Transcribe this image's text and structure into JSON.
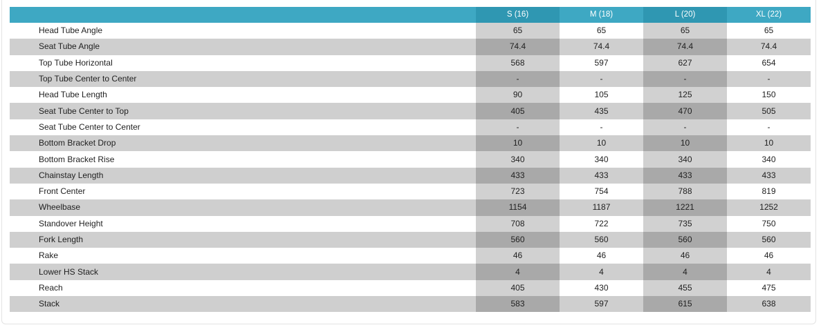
{
  "table": {
    "label_header": "",
    "sizes": [
      "S (16)",
      "M (18)",
      "L (20)",
      "XL (22)"
    ],
    "rows": [
      {
        "label": "Head Tube Angle",
        "values": [
          "65",
          "65",
          "65",
          "65"
        ]
      },
      {
        "label": "Seat Tube Angle",
        "values": [
          "74.4",
          "74.4",
          "74.4",
          "74.4"
        ]
      },
      {
        "label": "Top Tube Horizontal",
        "values": [
          "568",
          "597",
          "627",
          "654"
        ]
      },
      {
        "label": "Top Tube Center to Center",
        "values": [
          "-",
          "-",
          "-",
          "-"
        ]
      },
      {
        "label": "Head Tube Length",
        "values": [
          "90",
          "105",
          "125",
          "150"
        ]
      },
      {
        "label": "Seat Tube Center to Top",
        "values": [
          "405",
          "435",
          "470",
          "505"
        ]
      },
      {
        "label": "Seat Tube Center to Center",
        "values": [
          "-",
          "-",
          "-",
          "-"
        ]
      },
      {
        "label": "Bottom Bracket Drop",
        "values": [
          "10",
          "10",
          "10",
          "10"
        ]
      },
      {
        "label": "Bottom Bracket Rise",
        "values": [
          "340",
          "340",
          "340",
          "340"
        ]
      },
      {
        "label": "Chainstay Length",
        "values": [
          "433",
          "433",
          "433",
          "433"
        ]
      },
      {
        "label": "Front Center",
        "values": [
          "723",
          "754",
          "788",
          "819"
        ]
      },
      {
        "label": "Wheelbase",
        "values": [
          "1154",
          "1187",
          "1221",
          "1252"
        ]
      },
      {
        "label": "Standover Height",
        "values": [
          "708",
          "722",
          "735",
          "750"
        ]
      },
      {
        "label": "Fork Length",
        "values": [
          "560",
          "560",
          "560",
          "560"
        ]
      },
      {
        "label": "Rake",
        "values": [
          "46",
          "46",
          "46",
          "46"
        ]
      },
      {
        "label": "Lower HS Stack",
        "values": [
          "4",
          "4",
          "4",
          "4"
        ]
      },
      {
        "label": "Reach",
        "values": [
          "405",
          "430",
          "455",
          "475"
        ]
      },
      {
        "label": "Stack",
        "values": [
          "583",
          "597",
          "615",
          "638"
        ]
      }
    ]
  },
  "colors": {
    "header_bg": "#3ea8c3",
    "header_shade": "#2f97b2",
    "row_alt": "#cfcfcf",
    "col_shade_light": "#d1d1d1",
    "col_shade_dark": "#a9a9a9"
  }
}
